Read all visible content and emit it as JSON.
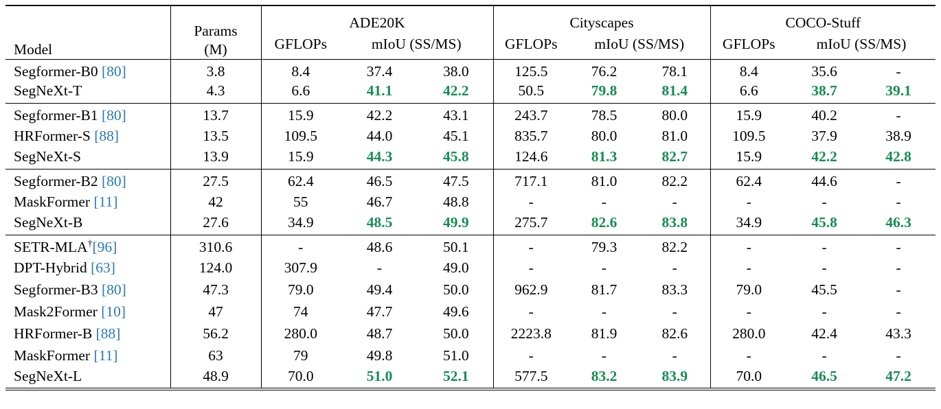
{
  "colors": {
    "green_best": "#168c53",
    "citation_blue": "#2878b8",
    "text": "#000000",
    "rule": "#000000",
    "background": "#ffffff"
  },
  "header": {
    "model": "Model",
    "params_line1": "Params",
    "params_line2": "(M)",
    "datasets": [
      "ADE20K",
      "Cityscapes",
      "COCO-Stuff"
    ],
    "gflops": "GFLOPs",
    "miou": "mIoU (SS/MS)"
  },
  "groups": [
    {
      "rows": [
        {
          "model": "Segformer-B0",
          "cite": "[80]",
          "dagger": false,
          "values": [
            "3.8",
            "8.4",
            "37.4",
            "38.0",
            "125.5",
            "76.2",
            "78.1",
            "8.4",
            "35.6",
            "-"
          ],
          "green": []
        },
        {
          "model": "SegNeXt-T",
          "cite": "",
          "dagger": false,
          "values": [
            "4.3",
            "6.6",
            "41.1",
            "42.2",
            "50.5",
            "79.8",
            "81.4",
            "6.6",
            "38.7",
            "39.1"
          ],
          "green": [
            2,
            3,
            5,
            6,
            8,
            9
          ]
        }
      ]
    },
    {
      "rows": [
        {
          "model": "Segformer-B1",
          "cite": "[80]",
          "dagger": false,
          "values": [
            "13.7",
            "15.9",
            "42.2",
            "43.1",
            "243.7",
            "78.5",
            "80.0",
            "15.9",
            "40.2",
            "-"
          ],
          "green": []
        },
        {
          "model": "HRFormer-S",
          "cite": "[88]",
          "dagger": false,
          "values": [
            "13.5",
            "109.5",
            "44.0",
            "45.1",
            "835.7",
            "80.0",
            "81.0",
            "109.5",
            "37.9",
            "38.9"
          ],
          "green": []
        },
        {
          "model": "SegNeXt-S",
          "cite": "",
          "dagger": false,
          "values": [
            "13.9",
            "15.9",
            "44.3",
            "45.8",
            "124.6",
            "81.3",
            "82.7",
            "15.9",
            "42.2",
            "42.8"
          ],
          "green": [
            2,
            3,
            5,
            6,
            8,
            9
          ]
        }
      ]
    },
    {
      "rows": [
        {
          "model": "Segformer-B2",
          "cite": "[80]",
          "dagger": false,
          "values": [
            "27.5",
            "62.4",
            "46.5",
            "47.5",
            "717.1",
            "81.0",
            "82.2",
            "62.4",
            "44.6",
            "-"
          ],
          "green": []
        },
        {
          "model": "MaskFormer",
          "cite": "[11]",
          "dagger": false,
          "values": [
            "42",
            "55",
            "46.7",
            "48.8",
            "-",
            "-",
            "-",
            "-",
            "-",
            "-"
          ],
          "green": []
        },
        {
          "model": "SegNeXt-B",
          "cite": "",
          "dagger": false,
          "values": [
            "27.6",
            "34.9",
            "48.5",
            "49.9",
            "275.7",
            "82.6",
            "83.8",
            "34.9",
            "45.8",
            "46.3"
          ],
          "green": [
            2,
            3,
            5,
            6,
            8,
            9
          ]
        }
      ]
    },
    {
      "rows": [
        {
          "model": "SETR-MLA",
          "cite": "[96]",
          "dagger": true,
          "values": [
            "310.6",
            "-",
            "48.6",
            "50.1",
            "-",
            "79.3",
            "82.2",
            "-",
            "-",
            "-"
          ],
          "green": []
        },
        {
          "model": "DPT-Hybrid",
          "cite": "[63]",
          "dagger": false,
          "values": [
            "124.0",
            "307.9",
            "-",
            "49.0",
            "-",
            "-",
            "-",
            "-",
            "-",
            "-"
          ],
          "green": []
        },
        {
          "model": "Segformer-B3",
          "cite": "[80]",
          "dagger": false,
          "values": [
            "47.3",
            "79.0",
            "49.4",
            "50.0",
            "962.9",
            "81.7",
            "83.3",
            "79.0",
            "45.5",
            "-"
          ],
          "green": []
        },
        {
          "model": "Mask2Former",
          "cite": "[10]",
          "dagger": false,
          "values": [
            "47",
            "74",
            "47.7",
            "49.6",
            "-",
            "-",
            "-",
            "-",
            "-",
            "-"
          ],
          "green": []
        },
        {
          "model": "HRFormer-B",
          "cite": "[88]",
          "dagger": false,
          "values": [
            "56.2",
            "280.0",
            "48.7",
            "50.0",
            "2223.8",
            "81.9",
            "82.6",
            "280.0",
            "42.4",
            "43.3"
          ],
          "green": []
        },
        {
          "model": "MaskFormer",
          "cite": "[11]",
          "dagger": false,
          "values": [
            "63",
            "79",
            "49.8",
            "51.0",
            "-",
            "-",
            "-",
            "-",
            "-",
            "-"
          ],
          "green": []
        },
        {
          "model": "SegNeXt-L",
          "cite": "",
          "dagger": false,
          "values": [
            "48.9",
            "70.0",
            "51.0",
            "52.1",
            "577.5",
            "83.2",
            "83.9",
            "70.0",
            "46.5",
            "47.2"
          ],
          "green": [
            2,
            3,
            5,
            6,
            8,
            9
          ]
        }
      ]
    }
  ]
}
